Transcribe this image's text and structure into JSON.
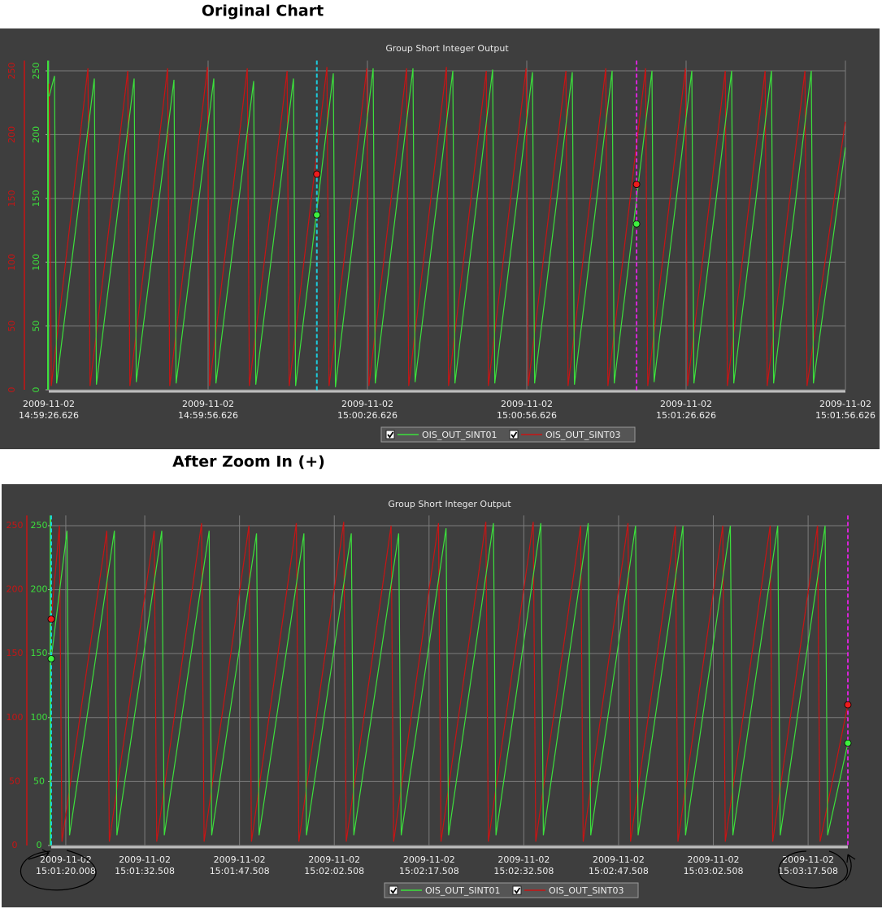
{
  "headings": [
    "Original Chart",
    "After Zoom In (+)"
  ],
  "chart_data": [
    {
      "type": "line",
      "title": "Group Short Integer Output",
      "rotated_tick_labels": true,
      "xlim": [
        "2009-11-02 14:59:26.626",
        "2009-11-02 15:01:56.626"
      ],
      "xticks": [
        "2009-11-02 14:59:26.626",
        "2009-11-02 14:59:56.626",
        "2009-11-02 15:00:26.626",
        "2009-11-02 15:00:56.626",
        "2009-11-02 15:01:26.626",
        "2009-11-02 15:01:56.626"
      ],
      "ylim": [
        0,
        258
      ],
      "yticks": [
        0,
        50,
        100,
        150,
        200,
        250
      ],
      "y2lim": [
        0,
        258
      ],
      "y2ticks": [
        0,
        50,
        100,
        150,
        200,
        250
      ],
      "grid": true,
      "series": [
        {
          "name": "OIS_OUT_SINT01",
          "color": "#3ce03c",
          "axis": "y2",
          "x": [
            "2009-11-02 14:59:26.7",
            "2009-11-02 14:59:27.7",
            "2009-11-02 14:59:28.1",
            "2009-11-02 14:59:35.2",
            "2009-11-02 14:59:35.6",
            "2009-11-02 14:59:42.7",
            "2009-11-02 14:59:43.1",
            "2009-11-02 14:59:50.2",
            "2009-11-02 14:59:50.6",
            "2009-11-02 14:59:57.7",
            "2009-11-02 14:59:58.1",
            "2009-11-02 15:00:05.2",
            "2009-11-02 15:00:05.6",
            "2009-11-02 15:00:12.7",
            "2009-11-02 15:00:13.1",
            "2009-11-02 15:00:20.2",
            "2009-11-02 15:00:20.6",
            "2009-11-02 15:00:27.7",
            "2009-11-02 15:00:28.1",
            "2009-11-02 15:00:35.2",
            "2009-11-02 15:00:35.6",
            "2009-11-02 15:00:42.7",
            "2009-11-02 15:00:43.1",
            "2009-11-02 15:00:50.2",
            "2009-11-02 15:00:50.6",
            "2009-11-02 15:00:57.7",
            "2009-11-02 15:00:58.1",
            "2009-11-02 15:01:05.2",
            "2009-11-02 15:01:05.6",
            "2009-11-02 15:01:12.7",
            "2009-11-02 15:01:13.1",
            "2009-11-02 15:01:20.2",
            "2009-11-02 15:01:20.6",
            "2009-11-02 15:01:27.7",
            "2009-11-02 15:01:28.1",
            "2009-11-02 15:01:35.2",
            "2009-11-02 15:01:35.6",
            "2009-11-02 15:01:42.7",
            "2009-11-02 15:01:43.1",
            "2009-11-02 15:01:50.2",
            "2009-11-02 15:01:50.6",
            "2009-11-02 15:01:56.6"
          ],
          "values": [
            230,
            246,
            5,
            244,
            4,
            244,
            6,
            243,
            5,
            244,
            5,
            242,
            4,
            244,
            3,
            248,
            2,
            252,
            5,
            252,
            6,
            250,
            5,
            251,
            5,
            249,
            5,
            249,
            4,
            250,
            5,
            250,
            6,
            250,
            5,
            250,
            5,
            250,
            5,
            250,
            5,
            190
          ]
        },
        {
          "name": "OIS_OUT_SINT03",
          "color": "#c81414",
          "axis": "y",
          "x": [
            "2009-11-02 14:59:26.7",
            "2009-11-02 14:59:27.1",
            "2009-11-02 14:59:34.0",
            "2009-11-02 14:59:34.4",
            "2009-11-02 14:59:41.5",
            "2009-11-02 14:59:41.9",
            "2009-11-02 14:59:49.0",
            "2009-11-02 14:59:49.4",
            "2009-11-02 14:59:56.5",
            "2009-11-02 14:59:56.9",
            "2009-11-02 15:00:04.0",
            "2009-11-02 15:00:04.4",
            "2009-11-02 15:00:11.5",
            "2009-11-02 15:00:11.9",
            "2009-11-02 15:00:19.0",
            "2009-11-02 15:00:19.4",
            "2009-11-02 15:00:26.5",
            "2009-11-02 15:00:26.9",
            "2009-11-02 15:00:34.0",
            "2009-11-02 15:00:34.4",
            "2009-11-02 15:00:41.5",
            "2009-11-02 15:00:41.9",
            "2009-11-02 15:00:49.0",
            "2009-11-02 15:00:49.4",
            "2009-11-02 15:00:56.5",
            "2009-11-02 15:00:56.9",
            "2009-11-02 15:01:04.0",
            "2009-11-02 15:01:04.4",
            "2009-11-02 15:01:11.5",
            "2009-11-02 15:01:11.9",
            "2009-11-02 15:01:19.0",
            "2009-11-02 15:01:19.4",
            "2009-11-02 15:01:26.5",
            "2009-11-02 15:01:26.9",
            "2009-11-02 15:01:34.0",
            "2009-11-02 15:01:34.4",
            "2009-11-02 15:01:41.5",
            "2009-11-02 15:01:41.9",
            "2009-11-02 15:01:49.0",
            "2009-11-02 15:01:49.4",
            "2009-11-02 15:01:56.6"
          ],
          "values": [
            240,
            3,
            252,
            3,
            250,
            3,
            252,
            3,
            253,
            3,
            252,
            3,
            250,
            3,
            253,
            3,
            252,
            3,
            252,
            3,
            253,
            3,
            250,
            3,
            252,
            3,
            250,
            3,
            252,
            3,
            252,
            3,
            252,
            3,
            250,
            3,
            250,
            3,
            250,
            3,
            210
          ]
        }
      ],
      "cursors": [
        {
          "x": "2009-11-02 15:00:17.1",
          "color": "#1ccbdc",
          "values": [
            137,
            169
          ]
        },
        {
          "x": "2009-11-02 15:01:17.3",
          "color": "#d824d8",
          "values": [
            130,
            161
          ]
        }
      ]
    },
    {
      "type": "line",
      "title": "Group Short Integer Output",
      "rotated_tick_labels": false,
      "xlim": [
        "2009-11-02 15:01:17.7",
        "2009-11-02 15:03:23.8"
      ],
      "xticks": [
        "2009-11-02 15:01:20.008",
        "2009-11-02 15:01:32.508",
        "2009-11-02 15:01:47.508",
        "2009-11-02 15:02:02.508",
        "2009-11-02 15:02:17.508",
        "2009-11-02 15:02:32.508",
        "2009-11-02 15:02:47.508",
        "2009-11-02 15:03:02.508",
        "2009-11-02 15:03:17.508"
      ],
      "ylim": [
        0,
        258
      ],
      "yticks": [
        0,
        50,
        100,
        150,
        200,
        250
      ],
      "y2lim": [
        0,
        258
      ],
      "y2ticks": [
        0,
        50,
        100,
        150,
        200,
        250
      ],
      "grid": true,
      "series": [
        {
          "name": "OIS_OUT_SINT01",
          "color": "#3ce03c",
          "axis": "y2",
          "x": [
            "2009-11-02 15:01:17.7",
            "2009-11-02 15:01:20.2",
            "2009-11-02 15:01:20.6",
            "2009-11-02 15:01:27.7",
            "2009-11-02 15:01:28.1",
            "2009-11-02 15:01:35.2",
            "2009-11-02 15:01:35.6",
            "2009-11-02 15:01:42.7",
            "2009-11-02 15:01:43.1",
            "2009-11-02 15:01:50.2",
            "2009-11-02 15:01:50.6",
            "2009-11-02 15:01:57.7",
            "2009-11-02 15:01:58.1",
            "2009-11-02 15:02:05.2",
            "2009-11-02 15:02:05.6",
            "2009-11-02 15:02:12.7",
            "2009-11-02 15:02:13.1",
            "2009-11-02 15:02:20.2",
            "2009-11-02 15:02:20.6",
            "2009-11-02 15:02:27.7",
            "2009-11-02 15:02:28.1",
            "2009-11-02 15:02:35.2",
            "2009-11-02 15:02:35.6",
            "2009-11-02 15:02:42.7",
            "2009-11-02 15:02:43.1",
            "2009-11-02 15:02:50.2",
            "2009-11-02 15:02:50.6",
            "2009-11-02 15:02:57.7",
            "2009-11-02 15:02:58.1",
            "2009-11-02 15:03:05.2",
            "2009-11-02 15:03:05.6",
            "2009-11-02 15:03:12.7",
            "2009-11-02 15:03:13.1",
            "2009-11-02 15:03:20.2",
            "2009-11-02 15:03:20.6",
            "2009-11-02 15:03:23.8"
          ],
          "values": [
            146,
            246,
            8,
            246,
            8,
            246,
            8,
            246,
            8,
            244,
            8,
            244,
            8,
            244,
            8,
            244,
            8,
            248,
            8,
            252,
            8,
            252,
            8,
            252,
            8,
            250,
            8,
            250,
            8,
            250,
            8,
            250,
            8,
            250,
            8,
            80
          ]
        },
        {
          "name": "OIS_OUT_SINT03",
          "color": "#c81414",
          "axis": "y",
          "x": [
            "2009-11-02 15:01:17.7",
            "2009-11-02 15:01:19.0",
            "2009-11-02 15:01:19.4",
            "2009-11-02 15:01:26.5",
            "2009-11-02 15:01:26.9",
            "2009-11-02 15:01:34.0",
            "2009-11-02 15:01:34.4",
            "2009-11-02 15:01:41.5",
            "2009-11-02 15:01:41.9",
            "2009-11-02 15:01:49.0",
            "2009-11-02 15:01:49.4",
            "2009-11-02 15:01:56.5",
            "2009-11-02 15:01:56.9",
            "2009-11-02 15:02:04.0",
            "2009-11-02 15:02:04.4",
            "2009-11-02 15:02:11.5",
            "2009-11-02 15:02:11.9",
            "2009-11-02 15:02:19.0",
            "2009-11-02 15:02:19.4",
            "2009-11-02 15:02:26.5",
            "2009-11-02 15:02:26.9",
            "2009-11-02 15:02:34.0",
            "2009-11-02 15:02:34.4",
            "2009-11-02 15:02:41.5",
            "2009-11-02 15:02:41.9",
            "2009-11-02 15:02:49.0",
            "2009-11-02 15:02:49.4",
            "2009-11-02 15:02:56.5",
            "2009-11-02 15:02:56.9",
            "2009-11-02 15:03:04.0",
            "2009-11-02 15:03:04.4",
            "2009-11-02 15:03:11.5",
            "2009-11-02 15:03:11.9",
            "2009-11-02 15:03:19.0",
            "2009-11-02 15:03:19.4",
            "2009-11-02 15:03:23.8"
          ],
          "values": [
            177,
            250,
            3,
            246,
            3,
            246,
            3,
            252,
            3,
            250,
            3,
            252,
            3,
            253,
            3,
            250,
            3,
            252,
            3,
            253,
            3,
            253,
            3,
            250,
            3,
            252,
            3,
            250,
            3,
            250,
            3,
            250,
            3,
            250,
            3,
            110
          ]
        }
      ],
      "cursors": [
        {
          "x": "2009-11-02 15:01:17.7",
          "color": "#1ccbdc",
          "values": [
            146,
            177
          ]
        },
        {
          "x": "2009-11-02 15:03:23.8",
          "color": "#d824d8",
          "values": [
            80,
            110
          ]
        }
      ]
    }
  ]
}
